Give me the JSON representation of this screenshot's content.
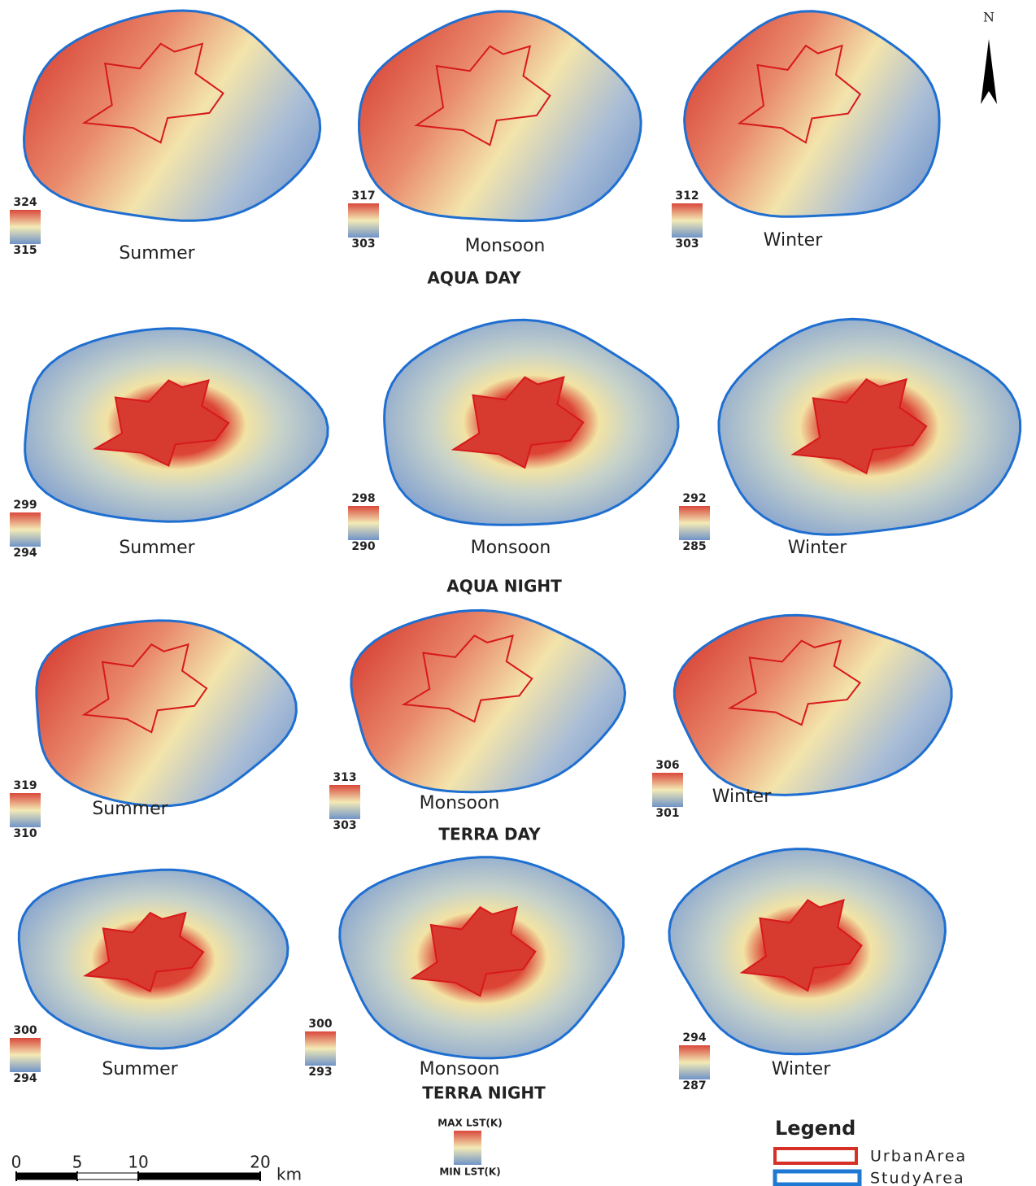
{
  "north": "N",
  "rows": [
    {
      "title": "AQUA DAY",
      "panels": [
        {
          "season": "Summer",
          "max": 324,
          "min": 315
        },
        {
          "season": "Monsoon",
          "max": 317,
          "min": 303
        },
        {
          "season": "Winter",
          "max": 312,
          "min": 303
        }
      ]
    },
    {
      "title": "AQUA NIGHT",
      "panels": [
        {
          "season": "Summer",
          "max": 299,
          "min": 294
        },
        {
          "season": "Monsoon",
          "max": 298,
          "min": 290
        },
        {
          "season": "Winter",
          "max": 292,
          "min": 285
        }
      ]
    },
    {
      "title": "TERRA DAY",
      "panels": [
        {
          "season": "Summer",
          "max": 319,
          "min": 310
        },
        {
          "season": "Monsoon",
          "max": 313,
          "min": 303
        },
        {
          "season": "Winter",
          "max": 306,
          "min": 301
        }
      ]
    },
    {
      "title": "TERRA NIGHT",
      "panels": [
        {
          "season": "Summer",
          "max": 300,
          "min": 294
        },
        {
          "season": "Monsoon",
          "max": 300,
          "min": 293
        },
        {
          "season": "Winter",
          "max": 294,
          "min": 287
        }
      ]
    }
  ],
  "lst_ramp": {
    "max_label": "MAX LST(K)",
    "min_label": "MIN LST(K)"
  },
  "scale_bar": {
    "ticks": [
      0,
      5,
      10,
      20
    ],
    "unit": "km"
  },
  "legend": {
    "title": "Legend",
    "items": [
      "UrbanArea",
      "StudyArea"
    ]
  }
}
